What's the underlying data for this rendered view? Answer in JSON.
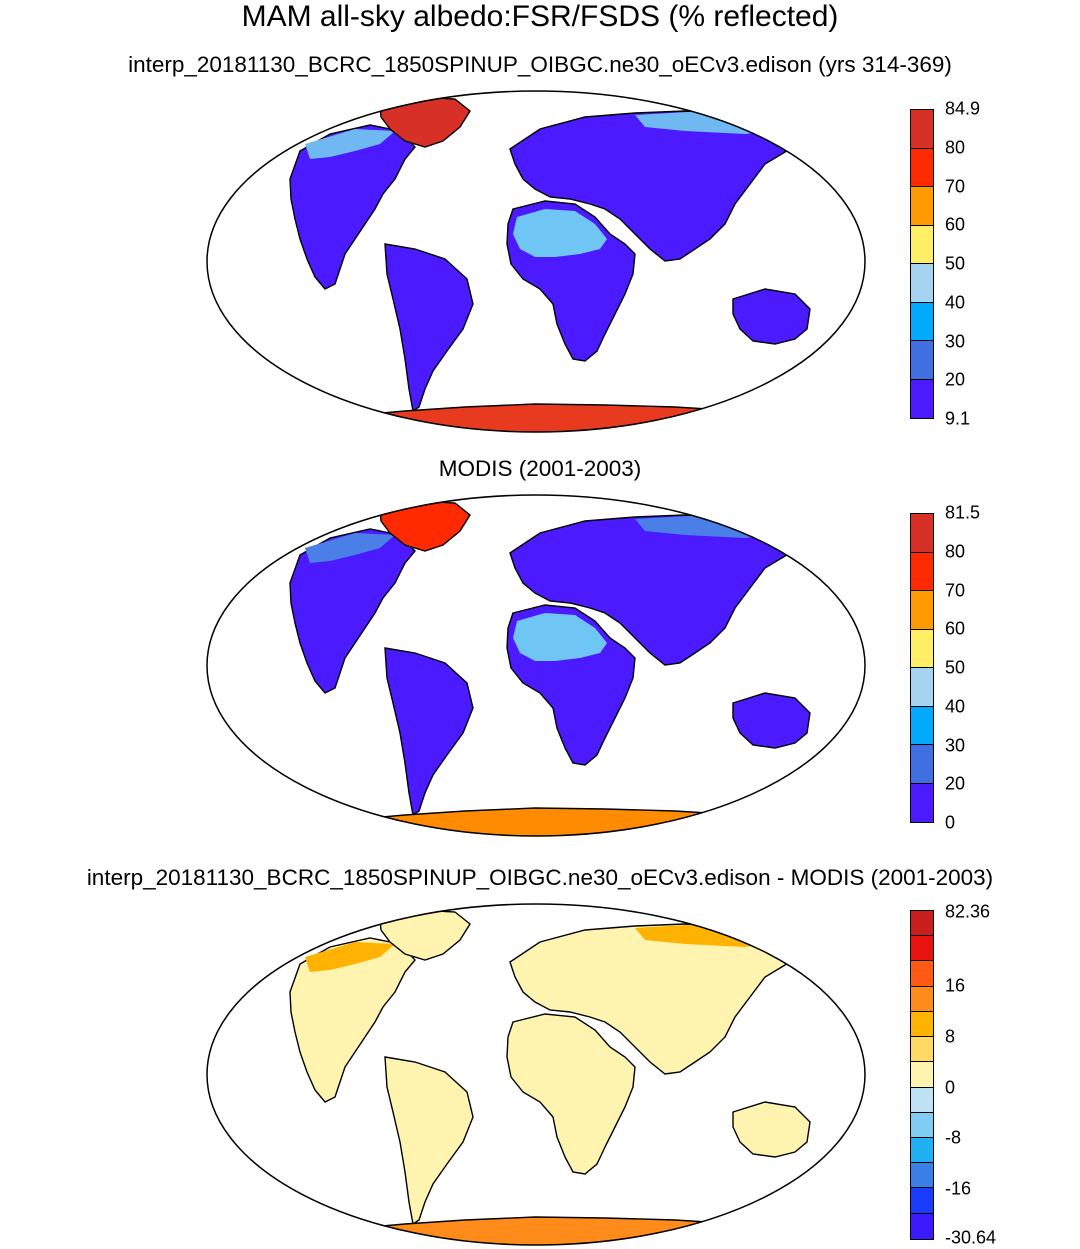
{
  "figure": {
    "title": "MAM all-sky albedo:FSR/FSDS (% reflected)"
  },
  "panels": [
    {
      "subtitle": "interp_20181130_BCRC_1850SPINUP_OIBGC.ne30_oECv3.edison (yrs 314-369)",
      "colorbar": {
        "labels": [
          "84.9",
          "80",
          "70",
          "60",
          "50",
          "40",
          "30",
          "20",
          "9.1"
        ],
        "colors": [
          "#d73027",
          "#ff2a00",
          "#ff9a00",
          "#ffee66",
          "#a6d4f0",
          "#00aaff",
          "#3f6fe0",
          "#4b1aff"
        ]
      },
      "region_fill": {
        "land": "#4b1aff",
        "sahara": "#6fc6f5",
        "greenland": "#d73027",
        "antarctica": "#e83a1f",
        "arctic_coast": "#6fb8f2"
      }
    },
    {
      "subtitle": "MODIS (2001-2003)",
      "colorbar": {
        "labels": [
          "81.5",
          "80",
          "70",
          "60",
          "50",
          "40",
          "30",
          "20",
          "0"
        ],
        "colors": [
          "#d73027",
          "#ff2a00",
          "#ff9a00",
          "#ffee66",
          "#a6d4f0",
          "#00aaff",
          "#3f6fe0",
          "#4b1aff"
        ]
      },
      "region_fill": {
        "land": "#4b1aff",
        "sahara": "#6fc6f5",
        "greenland": "#ff2a00",
        "antarctica": "#ff8c00",
        "arctic_coast": "#4a7fe8"
      }
    },
    {
      "subtitle": "interp_20181130_BCRC_1850SPINUP_OIBGC.ne30_oECv3.edison - MODIS (2001-2003)",
      "colorbar": {
        "labels": [
          "82.36",
          "16",
          "8",
          "0",
          "-8",
          "-16",
          "-30.64"
        ],
        "colors": [
          "#c81e1e",
          "#e8120e",
          "#ff5a14",
          "#ff8c1a",
          "#ffb300",
          "#ffd966",
          "#fff3b0",
          "#bfe3f5",
          "#80ccf2",
          "#22b0f5",
          "#3b7fe8",
          "#1a3cff",
          "#3b1aff"
        ]
      },
      "region_fill": {
        "land": "#fff3b0",
        "sahara": "#fff3b0",
        "greenland": "#fff3b0",
        "antarctica": "#ff8c1a",
        "arctic_coast": "#ffb300"
      }
    }
  ]
}
